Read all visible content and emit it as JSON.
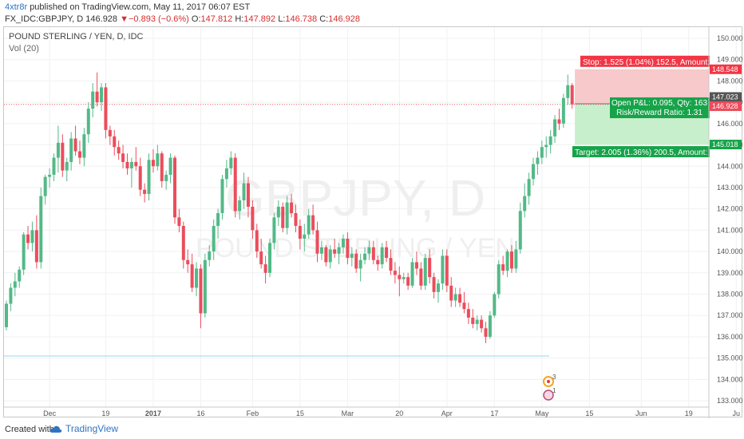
{
  "header": {
    "author": "4xtr8r",
    "published_text": "published on TradingView.com, May 11, 2017 06:07 EST",
    "symbol": "FX_IDC:GBPJPY, D",
    "last_price": "146.928",
    "change_arrow": "▼",
    "change": "−0.893 (−0.6%)",
    "open_label": "O:",
    "open": "147.812",
    "high_label": "H:",
    "high": "147.892",
    "low_label": "L:",
    "low": "146.738",
    "close_label": "C:",
    "close": "146.928"
  },
  "pane": {
    "title": "POUND STERLING / YEN, D, IDC",
    "volume_label": "Vol (20)"
  },
  "watermark": {
    "symbol": "GBPJPY, D",
    "name": "POUND STERLING / YEN"
  },
  "footer": {
    "created_with": "Created with",
    "brand": "TradingView"
  },
  "colors": {
    "up_candle": "#53b987",
    "down_candle": "#eb4d5c",
    "stop_zone": "#f7c9ca",
    "target_zone": "#c8efcb",
    "stop_label": "#f23645",
    "target_label": "#17a34a",
    "axis_text": "#555555",
    "grid": "#f1f1f1"
  },
  "chart_data": {
    "type": "candlestick",
    "symbol": "GBPJPY",
    "timeframe": "D",
    "y_axis": {
      "min": 133.0,
      "max": 150.0,
      "ticks": [
        "150.000",
        "149.000",
        "148.000",
        "147.000",
        "146.000",
        "145.000",
        "144.000",
        "143.000",
        "142.000",
        "141.000",
        "140.000",
        "139.000",
        "138.000",
        "137.000",
        "136.000",
        "135.000",
        "134.000",
        "133.000"
      ],
      "tick_values": [
        150,
        149,
        148,
        147,
        146,
        145,
        144,
        143,
        142,
        141,
        140,
        139,
        138,
        137,
        136,
        135,
        134,
        133
      ]
    },
    "x_axis": {
      "labels": [
        "Dec",
        "19",
        "2017",
        "16",
        "Feb",
        "15",
        "Mar",
        "20",
        "Apr",
        "17",
        "May",
        "15",
        "Jun",
        "19",
        "Ju"
      ],
      "label_bar_index": [
        10,
        23,
        34,
        45,
        57,
        68,
        79,
        91,
        102,
        113,
        124,
        135,
        147,
        158,
        169
      ]
    },
    "price_labels": {
      "stop_price": "148.548",
      "current": "147.023",
      "entry": "146.928",
      "target_price": "145.018"
    },
    "position": {
      "stop_text": "Stop: 1.525 (1.04%) 152.5, Amount:",
      "pnl_text": "Open P&L: 0.095, Qty: 163",
      "rr_text": "Risk/Reward Ratio: 1.31",
      "target_text": "Target: 2.005 (1.36%) 200.5, Amount:",
      "entry": 146.928,
      "stop": 148.548,
      "target": 145.018,
      "start_bar": 132
    },
    "horizontal_line": 135.1,
    "event_markers": [
      {
        "label": "3"
      },
      {
        "label": "1"
      }
    ],
    "candles": [
      [
        136.45,
        137.7,
        136.3,
        137.55
      ],
      [
        137.55,
        138.5,
        137.2,
        138.3
      ],
      [
        138.3,
        139.0,
        137.9,
        138.6
      ],
      [
        138.6,
        139.3,
        138.3,
        139.15
      ],
      [
        139.15,
        140.9,
        138.9,
        140.8
      ],
      [
        140.8,
        141.2,
        140.1,
        140.4
      ],
      [
        140.4,
        141.4,
        140.0,
        141.0
      ],
      [
        141.0,
        141.7,
        139.2,
        139.5
      ],
      [
        139.5,
        143.0,
        139.2,
        142.6
      ],
      [
        142.6,
        143.6,
        142.2,
        143.5
      ],
      [
        143.5,
        143.9,
        143.0,
        143.6
      ],
      [
        143.6,
        144.6,
        143.3,
        144.4
      ],
      [
        144.4,
        145.9,
        143.7,
        145.1
      ],
      [
        145.1,
        145.5,
        143.5,
        143.8
      ],
      [
        143.8,
        144.4,
        143.3,
        144.2
      ],
      [
        144.2,
        145.6,
        143.8,
        145.3
      ],
      [
        145.3,
        145.9,
        144.5,
        144.7
      ],
      [
        144.7,
        145.2,
        144.1,
        144.4
      ],
      [
        144.4,
        145.8,
        144.0,
        145.5
      ],
      [
        145.5,
        147.0,
        145.1,
        146.7
      ],
      [
        146.7,
        147.9,
        146.3,
        147.5
      ],
      [
        147.5,
        148.4,
        146.8,
        147.0
      ],
      [
        147.0,
        147.9,
        146.6,
        147.7
      ],
      [
        147.7,
        147.9,
        145.3,
        145.7
      ],
      [
        145.7,
        145.9,
        145.0,
        145.4
      ],
      [
        145.4,
        145.7,
        144.5,
        144.9
      ],
      [
        144.9,
        145.2,
        144.3,
        144.6
      ],
      [
        144.6,
        145.0,
        143.9,
        144.2
      ],
      [
        144.2,
        144.6,
        143.6,
        143.9
      ],
      [
        143.9,
        144.4,
        143.0,
        144.2
      ],
      [
        144.2,
        144.9,
        143.8,
        144.0
      ],
      [
        144.0,
        144.4,
        142.6,
        142.9
      ],
      [
        142.9,
        143.2,
        142.3,
        142.7
      ],
      [
        142.7,
        144.6,
        142.4,
        144.3
      ],
      [
        144.3,
        144.8,
        143.7,
        144.0
      ],
      [
        144.0,
        145.0,
        143.8,
        144.6
      ],
      [
        144.6,
        144.7,
        143.0,
        143.3
      ],
      [
        143.3,
        143.8,
        142.9,
        143.6
      ],
      [
        143.6,
        144.6,
        143.2,
        144.4
      ],
      [
        144.4,
        144.5,
        141.3,
        141.6
      ],
      [
        141.6,
        142.0,
        140.9,
        141.2
      ],
      [
        141.2,
        141.4,
        139.2,
        139.6
      ],
      [
        139.6,
        140.1,
        139.0,
        139.4
      ],
      [
        139.4,
        139.9,
        138.1,
        138.3
      ],
      [
        138.3,
        139.5,
        137.9,
        139.2
      ],
      [
        139.2,
        139.4,
        136.4,
        137.1
      ],
      [
        137.1,
        139.9,
        136.9,
        139.6
      ],
      [
        139.6,
        140.3,
        139.3,
        140.0
      ],
      [
        140.0,
        141.5,
        139.6,
        141.2
      ],
      [
        141.2,
        142.0,
        140.6,
        141.8
      ],
      [
        141.8,
        143.6,
        141.5,
        143.4
      ],
      [
        143.4,
        144.3,
        143.0,
        143.9
      ],
      [
        143.9,
        144.7,
        143.6,
        144.4
      ],
      [
        144.4,
        144.6,
        141.6,
        141.9
      ],
      [
        141.9,
        142.6,
        141.5,
        142.4
      ],
      [
        142.4,
        143.7,
        142.0,
        143.2
      ],
      [
        143.2,
        143.5,
        141.6,
        142.1
      ],
      [
        142.1,
        142.4,
        140.6,
        141.0
      ],
      [
        141.0,
        141.3,
        139.7,
        140.0
      ],
      [
        140.0,
        140.6,
        139.2,
        139.4
      ],
      [
        139.4,
        139.8,
        138.5,
        139.0
      ],
      [
        139.0,
        140.6,
        138.8,
        140.4
      ],
      [
        140.4,
        141.8,
        140.1,
        141.6
      ],
      [
        141.6,
        142.4,
        141.2,
        142.1
      ],
      [
        142.1,
        142.3,
        140.9,
        141.1
      ],
      [
        141.1,
        142.6,
        140.8,
        142.3
      ],
      [
        142.3,
        142.7,
        141.6,
        141.8
      ],
      [
        141.8,
        142.2,
        140.9,
        141.2
      ],
      [
        141.2,
        141.5,
        140.1,
        140.6
      ],
      [
        140.6,
        141.3,
        140.0,
        140.8
      ],
      [
        140.8,
        142.0,
        140.6,
        141.7
      ],
      [
        141.7,
        142.2,
        140.8,
        141.0
      ],
      [
        141.0,
        141.4,
        139.5,
        139.9
      ],
      [
        139.9,
        140.5,
        139.6,
        140.2
      ],
      [
        140.2,
        140.3,
        139.3,
        139.5
      ],
      [
        139.5,
        140.3,
        139.2,
        140.1
      ],
      [
        140.1,
        140.6,
        139.7,
        139.9
      ],
      [
        139.9,
        140.4,
        139.4,
        140.2
      ],
      [
        140.2,
        140.8,
        139.9,
        140.6
      ],
      [
        140.6,
        140.9,
        139.4,
        139.7
      ],
      [
        139.7,
        140.2,
        139.3,
        139.9
      ],
      [
        139.9,
        140.1,
        139.0,
        139.2
      ],
      [
        139.2,
        139.9,
        138.6,
        139.6
      ],
      [
        139.6,
        140.2,
        139.4,
        139.9
      ],
      [
        139.9,
        140.5,
        139.6,
        140.2
      ],
      [
        140.2,
        140.5,
        139.4,
        139.6
      ],
      [
        139.6,
        139.8,
        139.1,
        139.4
      ],
      [
        139.4,
        140.4,
        139.2,
        140.2
      ],
      [
        140.2,
        140.5,
        139.5,
        139.7
      ],
      [
        139.7,
        140.1,
        138.9,
        139.1
      ],
      [
        139.1,
        139.5,
        138.5,
        138.9
      ],
      [
        138.9,
        139.3,
        137.9,
        138.7
      ],
      [
        138.7,
        139.0,
        138.5,
        138.8
      ],
      [
        138.8,
        139.0,
        138.2,
        138.4
      ],
      [
        138.4,
        139.7,
        138.3,
        139.5
      ],
      [
        139.5,
        140.0,
        138.9,
        139.2
      ],
      [
        139.2,
        139.5,
        138.2,
        138.4
      ],
      [
        138.4,
        139.9,
        138.2,
        139.7
      ],
      [
        139.7,
        140.1,
        138.5,
        138.8
      ],
      [
        138.8,
        139.0,
        137.8,
        138.1
      ],
      [
        138.1,
        138.7,
        137.6,
        138.5
      ],
      [
        138.5,
        140.1,
        138.2,
        139.8
      ],
      [
        139.8,
        140.1,
        138.1,
        138.4
      ],
      [
        138.4,
        138.8,
        137.4,
        137.7
      ],
      [
        137.7,
        138.3,
        137.4,
        138.0
      ],
      [
        138.0,
        138.3,
        137.4,
        137.6
      ],
      [
        137.6,
        138.1,
        137.1,
        137.3
      ],
      [
        137.3,
        137.6,
        136.6,
        136.9
      ],
      [
        136.9,
        137.3,
        136.4,
        136.6
      ],
      [
        136.6,
        137.0,
        136.3,
        136.8
      ],
      [
        136.8,
        137.0,
        136.2,
        136.4
      ],
      [
        136.4,
        136.7,
        135.7,
        136.0
      ],
      [
        136.0,
        137.2,
        135.9,
        137.0
      ],
      [
        137.0,
        138.1,
        136.9,
        138.0
      ],
      [
        138.0,
        139.6,
        137.8,
        139.4
      ],
      [
        139.4,
        139.8,
        138.9,
        139.1
      ],
      [
        139.1,
        140.1,
        138.8,
        140.0
      ],
      [
        140.0,
        140.3,
        139.0,
        139.2
      ],
      [
        139.2,
        140.5,
        139.0,
        140.1
      ],
      [
        140.1,
        142.3,
        139.9,
        141.9
      ],
      [
        141.9,
        143.2,
        141.6,
        142.6
      ],
      [
        142.6,
        143.7,
        142.2,
        143.4
      ],
      [
        143.4,
        144.4,
        143.1,
        144.1
      ],
      [
        144.1,
        144.7,
        143.6,
        144.4
      ],
      [
        144.4,
        145.2,
        144.1,
        144.9
      ],
      [
        144.9,
        145.4,
        144.4,
        145.0
      ],
      [
        145.0,
        145.7,
        144.6,
        145.4
      ],
      [
        145.4,
        146.4,
        145.1,
        146.2
      ],
      [
        146.2,
        146.7,
        145.7,
        146.0
      ],
      [
        146.0,
        147.4,
        145.8,
        147.2
      ],
      [
        147.2,
        148.3,
        146.9,
        147.8
      ],
      [
        147.8,
        147.9,
        146.7,
        146.9
      ]
    ]
  }
}
